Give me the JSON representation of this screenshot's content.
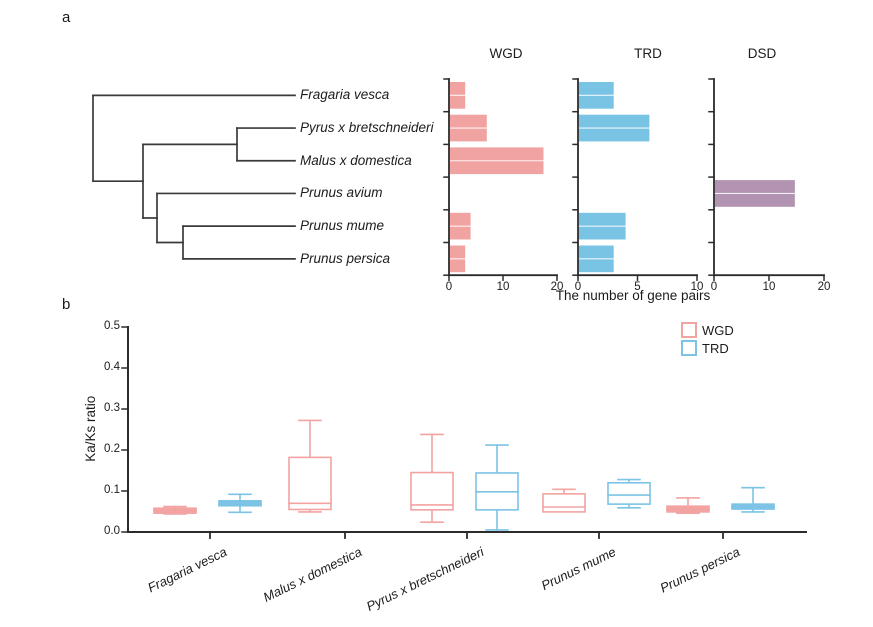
{
  "panels": {
    "a": {
      "label": "a"
    },
    "b": {
      "label": "b"
    }
  },
  "colors": {
    "wgd_bar": "#F1A3A2",
    "trd_bar": "#79C3E4",
    "dsd_bar": "#B293B1",
    "wgd_box": "#F2A3A2",
    "trd_box": "#7CC3E6",
    "tree_line": "#3a3a3a",
    "axis_line": "#2b2b2b"
  },
  "chart_data": [
    {
      "panel": "a",
      "type": "bar",
      "orientation": "horizontal",
      "species": [
        "Fragaria vesca",
        "Pyrus x bretschneideri",
        "Malus x domestica",
        "Prunus avium",
        "Prunus mume",
        "Prunus persica"
      ],
      "tree": "(Fragaria vesca,((Pyrus x bretschneideri,Malus x domestica),(Prunus avium,(Prunus mume,Prunus persica))))",
      "xlabel": "The number of gene pairs",
      "charts": [
        {
          "title": "WGD",
          "color": "#F1A3A2",
          "xlim": [
            0,
            20
          ],
          "xticks": [
            0,
            10,
            20
          ],
          "values": [
            3,
            7,
            17.5,
            0,
            4,
            3
          ]
        },
        {
          "title": "TRD",
          "color": "#79C3E4",
          "xlim": [
            0,
            10
          ],
          "xticks": [
            0,
            5,
            10
          ],
          "values": [
            3,
            6,
            0,
            0,
            4,
            3
          ]
        },
        {
          "title": "DSD",
          "color": "#B293B1",
          "xlim": [
            0,
            20
          ],
          "xticks": [
            0,
            10,
            20
          ],
          "values": [
            0,
            0,
            0,
            14.7,
            0,
            0
          ]
        }
      ]
    },
    {
      "panel": "b",
      "type": "boxplot",
      "ylabel": "Ka/Ks ratio",
      "ylim": [
        0,
        0.5
      ],
      "yticks": [
        "0.0",
        "0.1",
        "0.2",
        "0.3",
        "0.4",
        "0.5"
      ],
      "categories": [
        "Fragaria vesca",
        "Malus x domestica",
        "Pyrus x bretschneideri",
        "Prunus mume",
        "Prunus persica"
      ],
      "legend": [
        {
          "label": "WGD",
          "color": "#F2A3A2"
        },
        {
          "label": "TRD",
          "color": "#7CC3E6"
        }
      ],
      "series": [
        {
          "name": "WGD",
          "color": "#F2A3A2",
          "boxes": [
            {
              "low": 0.044,
              "q1": 0.046,
              "median": 0.051,
              "q3": 0.058,
              "high": 0.062,
              "filled": true
            },
            {
              "low": 0.049,
              "q1": 0.055,
              "median": 0.07,
              "q3": 0.182,
              "high": 0.272,
              "filled": false
            },
            {
              "low": 0.024,
              "q1": 0.054,
              "median": 0.066,
              "q3": 0.145,
              "high": 0.238,
              "filled": false
            },
            {
              "low": 0.049,
              "q1": 0.049,
              "median": 0.061,
              "q3": 0.093,
              "high": 0.104,
              "filled": false
            },
            {
              "low": 0.046,
              "q1": 0.049,
              "median": 0.055,
              "q3": 0.063,
              "high": 0.083,
              "filled": true
            }
          ]
        },
        {
          "name": "TRD",
          "color": "#7CC3E6",
          "boxes": [
            {
              "low": 0.048,
              "q1": 0.064,
              "median": 0.069,
              "q3": 0.076,
              "high": 0.092,
              "filled": true
            },
            null,
            {
              "low": 0.005,
              "q1": 0.054,
              "median": 0.098,
              "q3": 0.144,
              "high": 0.212,
              "filled": false
            },
            {
              "low": 0.059,
              "q1": 0.068,
              "median": 0.09,
              "q3": 0.12,
              "high": 0.128,
              "filled": false
            },
            {
              "low": 0.049,
              "q1": 0.056,
              "median": 0.061,
              "q3": 0.068,
              "high": 0.108,
              "filled": true
            }
          ]
        }
      ]
    }
  ]
}
